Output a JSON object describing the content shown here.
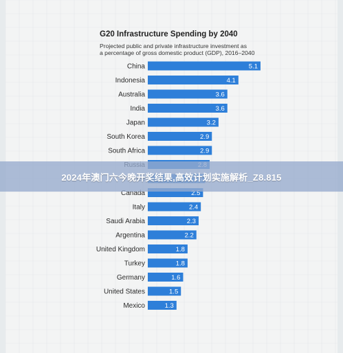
{
  "banner": {
    "text": "2024年澳门六今晚开奖结果,高效计划实施解析_Z8.815"
  },
  "chart_data": {
    "type": "bar",
    "orientation": "horizontal",
    "title": "G20 Infrastructure Spending by 2040",
    "subtitle_lines": [
      "Projected public and private infrastructure investment as",
      "a percentage of gross domestic product (GDP), 2016–2040"
    ],
    "categories": [
      "China",
      "Indonesia",
      "Australia",
      "India",
      "Japan",
      "South Korea",
      "South Africa",
      "Russia",
      "France",
      "Canada",
      "Italy",
      "Saudi Arabia",
      "Argentina",
      "United Kingdom",
      "Turkey",
      "Germany",
      "United States",
      "Mexico"
    ],
    "values": [
      5.1,
      4.1,
      3.6,
      3.6,
      3.2,
      2.9,
      2.9,
      2.8,
      2.6,
      2.5,
      2.4,
      2.3,
      2.2,
      1.8,
      1.8,
      1.6,
      1.5,
      1.3
    ],
    "value_labels": [
      "5.1",
      "4.1",
      "3.6",
      "3.6",
      "3.2",
      "2.9",
      "2.9",
      "2.8",
      "2.6",
      "2.5",
      "2.4",
      "2.3",
      "2.2",
      "1.8",
      "1.8",
      "1.6",
      "1.5",
      "1.3"
    ],
    "xlim": [
      0,
      5.1
    ],
    "bar_color": "#2e7fd9",
    "label_color": "#ffffff",
    "grid": false,
    "legend": "none"
  }
}
